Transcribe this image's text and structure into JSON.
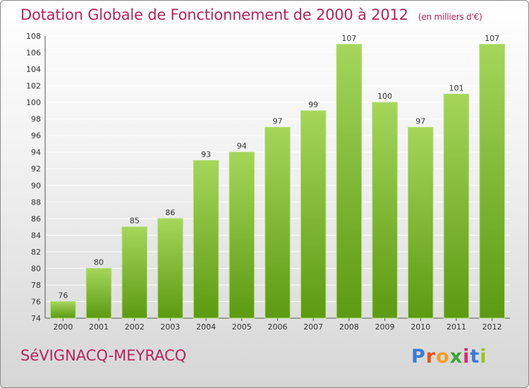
{
  "header": {
    "title": "Dotation Globale de Fonctionnement de 2000 à 2012",
    "unit": "(en milliers d'€)"
  },
  "footer": {
    "commune": "SéVIGNACQ-MEYRACQ",
    "logo_letters": [
      "P",
      "r",
      "o",
      "x",
      "i",
      "t",
      "i"
    ]
  },
  "colors": {
    "title": "#b5245b",
    "bar_top": "#a5d65a",
    "bar_bottom": "#5c9a12",
    "grid": "#ffffff"
  },
  "chart_data": {
    "type": "bar",
    "title": "Dotation Globale de Fonctionnement de 2000 à 2012",
    "categories": [
      "2000",
      "2001",
      "2002",
      "2003",
      "2004",
      "2005",
      "2006",
      "2007",
      "2008",
      "2009",
      "2010",
      "2011",
      "2012"
    ],
    "values": [
      76,
      80,
      85,
      86,
      93,
      94,
      97,
      99,
      107,
      100,
      97,
      101,
      107
    ],
    "ylim": [
      74,
      108
    ],
    "yticks": [
      74,
      76,
      78,
      80,
      82,
      84,
      86,
      88,
      90,
      92,
      94,
      96,
      98,
      100,
      102,
      104,
      106,
      108
    ],
    "xlabel": "",
    "ylabel": "",
    "grid": true,
    "legend": "none"
  }
}
